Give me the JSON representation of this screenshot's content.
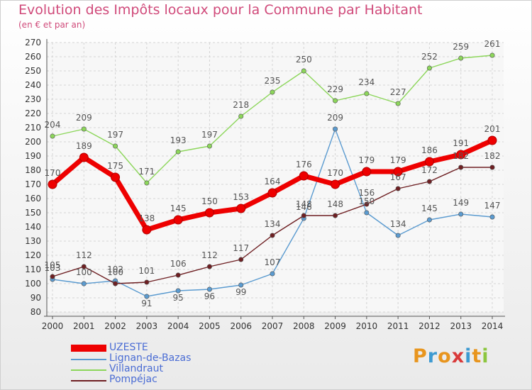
{
  "title": "Evolution des Impôts locaux pour la Commune par Habitant",
  "subtitle": "(en € et par an)",
  "logo": {
    "text": "Proxiti",
    "colors": [
      "#e8951e",
      "#3d9ad1",
      "#e8951e",
      "#d93a3a",
      "#3d9ad1",
      "#e8951e",
      "#8cc63f"
    ]
  },
  "chart_data": {
    "type": "line",
    "title": "Evolution des Impôts locaux pour la Commune par Habitant",
    "subtitle": "(en € et par an)",
    "x": [
      "2000",
      "2001",
      "2002",
      "2003",
      "2004",
      "2005",
      "2006",
      "2007",
      "2008",
      "2009",
      "2010",
      "2011",
      "2012",
      "2013",
      "2014"
    ],
    "ylim": [
      80,
      270
    ],
    "yticks": [
      80,
      90,
      100,
      110,
      120,
      130,
      140,
      150,
      160,
      170,
      180,
      190,
      200,
      210,
      220,
      230,
      240,
      250,
      260,
      270
    ],
    "grid": true,
    "legend_position": "bottom-left",
    "series": [
      {
        "name": "UZESTE",
        "color": "#ee0000",
        "values": [
          170,
          189,
          175,
          138,
          145,
          150,
          153,
          164,
          176,
          170,
          179,
          179,
          186,
          191,
          201
        ]
      },
      {
        "name": "Lignan-de-Bazas",
        "color": "#5b9bd0",
        "values": [
          103,
          100,
          102,
          91,
          95,
          96,
          99,
          107,
          146,
          209,
          150,
          134,
          145,
          149,
          147
        ]
      },
      {
        "name": "Villandraut",
        "color": "#8cd65a",
        "values": [
          204,
          209,
          197,
          171,
          193,
          197,
          218,
          235,
          250,
          229,
          234,
          227,
          252,
          259,
          261
        ]
      },
      {
        "name": "Pompéjac",
        "color": "#6e1f22",
        "values": [
          105,
          112,
          100,
          101,
          106,
          112,
          117,
          134,
          148,
          148,
          156,
          167,
          172,
          182,
          182
        ]
      }
    ],
    "point_labels": [
      [
        "170",
        "189",
        "175",
        "138",
        "145",
        "150",
        "153",
        "164",
        "176",
        "170",
        "179",
        "179",
        "186",
        "191",
        "201"
      ],
      [
        "103",
        "100",
        "102",
        "91",
        "95",
        "96",
        "99",
        "107",
        "146",
        "209",
        "150",
        "134",
        "145",
        "149",
        "147"
      ],
      [
        "204",
        "209",
        "197",
        "171",
        "193",
        "197",
        "218",
        "235",
        "250",
        "229",
        "234",
        "227",
        "252",
        "259",
        "261"
      ],
      [
        "105",
        "112",
        "100",
        "101",
        "106",
        "112",
        "117",
        "134",
        "148",
        "148",
        "156",
        "167",
        "172",
        "182",
        "182"
      ]
    ]
  }
}
